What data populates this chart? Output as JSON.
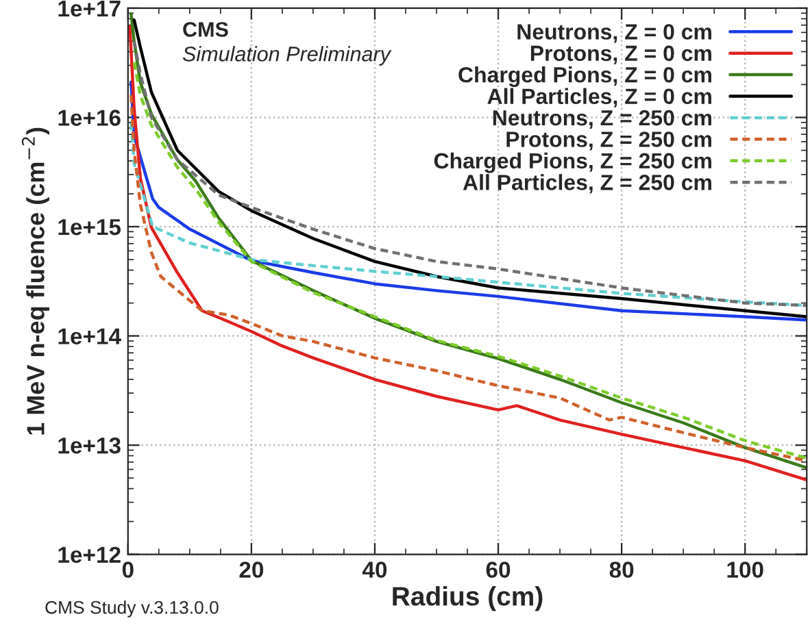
{
  "chart_data": {
    "type": "line",
    "xlabel": "Radius (cm)",
    "ylabel": "1 MeV n-eq fluence (cm$^{−2}$)",
    "log": "y",
    "grid": true,
    "legend": "top right",
    "xlim": [
      0,
      110
    ],
    "xticks": [
      0,
      20,
      40,
      60,
      80,
      100
    ],
    "ylim": [
      1000000000000.0,
      1e+17
    ],
    "yticks": [
      {
        "value": 1000000000000.0,
        "label": "1e+12"
      },
      {
        "value": 10000000000000.0,
        "label": "1e+13"
      },
      {
        "value": 100000000000000.0,
        "label": "1e+14"
      },
      {
        "value": 1000000000000000.0,
        "label": "1e+15"
      },
      {
        "value": 1e+16,
        "label": "1e+16"
      },
      {
        "value": 1e+17,
        "label": "1e+17"
      }
    ],
    "annotations": [
      "CMS",
      "Simulation Preliminary",
      "CMS Study v.3.13.0.0"
    ],
    "series": [
      {
        "name": "Neutrons, Z = 0 cm",
        "color": "#1a3be8",
        "line_style": "solid",
        "x": [
          0.5,
          1,
          4,
          5,
          10,
          20,
          30,
          40,
          50,
          60,
          80,
          100,
          110
        ],
        "values": [
          2.1e+16,
          6800000000000000.0,
          1800000000000000.0,
          1500000000000000.0,
          950000000000000.0,
          490000000000000.0,
          380000000000000.0,
          300000000000000.0,
          260000000000000.0,
          230000000000000.0,
          170000000000000.0,
          150000000000000.0,
          140000000000000.0
        ]
      },
      {
        "name": "Protons, Z = 0 cm",
        "color": "#e02020",
        "line_style": "solid",
        "x": [
          0.3,
          1,
          2,
          3.8,
          8,
          12,
          15,
          20,
          25,
          30,
          40,
          50,
          60,
          63,
          70,
          80,
          90,
          100,
          110
        ],
        "values": [
          6.8e+16,
          1.2e+16,
          2800000000000000.0,
          980000000000000.0,
          380000000000000.0,
          170000000000000.0,
          145000000000000.0,
          110000000000000.0,
          81000000000000.0,
          63000000000000.0,
          40000000000000.0,
          28000000000000.0,
          21000000000000.0,
          23000000000000.0,
          17000000000000.0,
          12600000000000.0,
          9500000000000.0,
          7200000000000.0,
          4800000000000.0
        ]
      },
      {
        "name": "Charged Pions, Z = 0 cm",
        "color": "#3a7a1a",
        "line_style": "solid",
        "x": [
          0.5,
          1,
          2,
          3.8,
          8,
          11,
          14.7,
          20,
          30,
          40,
          50,
          60,
          70,
          80,
          90,
          100,
          110
        ],
        "values": [
          8.9e+16,
          5e+16,
          2.1e+16,
          1.07e+16,
          4100000000000000.0,
          2600000000000000.0,
          1200000000000000.0,
          490000000000000.0,
          260000000000000.0,
          145000000000000.0,
          89000000000000.0,
          62000000000000.0,
          40000000000000.0,
          24500000000000.0,
          16000000000000.0,
          9500000000000.0,
          6200000000000.0
        ]
      },
      {
        "name": "All Particles, Z = 0 cm",
        "color": "#000000",
        "line_style": "solid",
        "x": [
          1,
          2,
          3.8,
          8,
          14.7,
          20,
          30,
          40,
          50,
          60,
          80,
          100,
          110
        ],
        "values": [
          7.8e+16,
          4.4e+16,
          1.7e+16,
          5000000000000000.0,
          2100000000000000.0,
          1400000000000000.0,
          780000000000000.0,
          480000000000000.0,
          350000000000000.0,
          275000000000000.0,
          220000000000000.0,
          170000000000000.0,
          150000000000000.0
        ]
      },
      {
        "name": "Neutrons, Z = 250 cm",
        "color": "#5fcfd0",
        "line_style": "dashed",
        "x": [
          0.5,
          1,
          4,
          10,
          20,
          30,
          40,
          50,
          60,
          80,
          100,
          110
        ],
        "values": [
          8900000000000000.0,
          3800000000000000.0,
          1000000000000000.0,
          710000000000000.0,
          500000000000000.0,
          440000000000000.0,
          390000000000000.0,
          350000000000000.0,
          310000000000000.0,
          245000000000000.0,
          205000000000000.0,
          190000000000000.0
        ]
      },
      {
        "name": "Protons, Z = 250 cm",
        "color": "#d0602a",
        "line_style": "dashed",
        "x": [
          0.5,
          1,
          2,
          3.8,
          5.3,
          12,
          16.4,
          20,
          25,
          30,
          40,
          50,
          60,
          70,
          78,
          80,
          90,
          100,
          110
        ],
        "values": [
          1.6e+16,
          5000000000000000.0,
          1600000000000000.0,
          580000000000000.0,
          350000000000000.0,
          170000000000000.0,
          155000000000000.0,
          130000000000000.0,
          100000000000000.0,
          89000000000000.0,
          63000000000000.0,
          48000000000000.0,
          35000000000000.0,
          27000000000000.0,
          17000000000000.0,
          18000000000000.0,
          13000000000000.0,
          9500000000000.0,
          7200000000000.0
        ]
      },
      {
        "name": "Charged Pions, Z = 250 cm",
        "color": "#7ccc2a",
        "line_style": "dashed",
        "x": [
          1,
          2,
          3.8,
          8,
          11,
          14.7,
          20,
          30,
          40,
          50,
          60,
          70,
          80,
          90,
          100,
          110
        ],
        "values": [
          3.2e+16,
          1.6e+16,
          8500000000000000.0,
          3500000000000000.0,
          2200000000000000.0,
          1100000000000000.0,
          480000000000000.0,
          250000000000000.0,
          150000000000000.0,
          91000000000000.0,
          65000000000000.0,
          43000000000000.0,
          27000000000000.0,
          18000000000000.0,
          11000000000000.0,
          7600000000000.0
        ]
      },
      {
        "name": "All Particles, Z = 250 cm",
        "color": "#707070",
        "line_style": "dashed",
        "x": [
          1,
          2,
          3.8,
          8,
          14.7,
          20,
          30,
          40,
          50,
          60,
          80,
          100,
          110
        ],
        "values": [
          5e+16,
          2.5e+16,
          1e+16,
          4100000000000000.0,
          1950000000000000.0,
          1500000000000000.0,
          950000000000000.0,
          630000000000000.0,
          480000000000000.0,
          410000000000000.0,
          275000000000000.0,
          200000000000000.0,
          190000000000000.0
        ]
      }
    ]
  }
}
